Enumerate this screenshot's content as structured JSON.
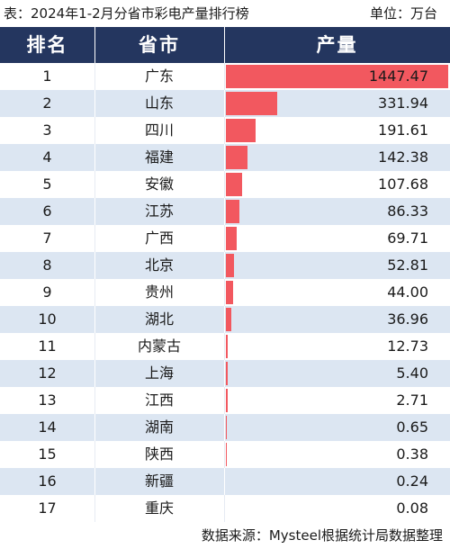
{
  "caption": {
    "title": "表：2024年1-2月分省市彩电产量排行榜",
    "unit": "单位：万台"
  },
  "header": {
    "rank": "排名",
    "province": "省市",
    "production": "产量"
  },
  "colors": {
    "header_bg": "#24365f",
    "stripe": "#dce6f2",
    "bar": "#f2585f"
  },
  "rows": [
    {
      "rank": "1",
      "province": "广东",
      "value": "1447.47",
      "amount": 1447.47
    },
    {
      "rank": "2",
      "province": "山东",
      "value": "331.94",
      "amount": 331.94
    },
    {
      "rank": "3",
      "province": "四川",
      "value": "191.61",
      "amount": 191.61
    },
    {
      "rank": "4",
      "province": "福建",
      "value": "142.38",
      "amount": 142.38
    },
    {
      "rank": "5",
      "province": "安徽",
      "value": "107.68",
      "amount": 107.68
    },
    {
      "rank": "6",
      "province": "江苏",
      "value": "86.33",
      "amount": 86.33
    },
    {
      "rank": "7",
      "province": "广西",
      "value": "69.71",
      "amount": 69.71
    },
    {
      "rank": "8",
      "province": "北京",
      "value": "52.81",
      "amount": 52.81
    },
    {
      "rank": "9",
      "province": "贵州",
      "value": "44.00",
      "amount": 44.0
    },
    {
      "rank": "10",
      "province": "湖北",
      "value": "36.96",
      "amount": 36.96
    },
    {
      "rank": "11",
      "province": "内蒙古",
      "value": "12.73",
      "amount": 12.73
    },
    {
      "rank": "12",
      "province": "上海",
      "value": "5.40",
      "amount": 5.4
    },
    {
      "rank": "13",
      "province": "江西",
      "value": "2.71",
      "amount": 2.71
    },
    {
      "rank": "14",
      "province": "湖南",
      "value": "0.65",
      "amount": 0.65
    },
    {
      "rank": "15",
      "province": "陕西",
      "value": "0.38",
      "amount": 0.38
    },
    {
      "rank": "16",
      "province": "新疆",
      "value": "0.24",
      "amount": 0.24
    },
    {
      "rank": "17",
      "province": "重庆",
      "value": "0.08",
      "amount": 0.08
    }
  ],
  "footer": {
    "source": "数据来源：Mysteel根据统计局数据整理"
  }
}
